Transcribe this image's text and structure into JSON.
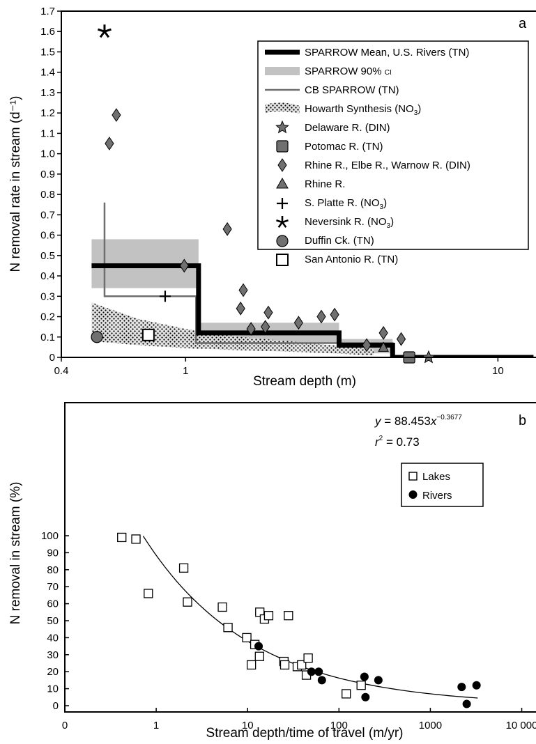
{
  "chart_data": [
    {
      "panel": "a",
      "type": "line",
      "xlabel": "Stream depth (m)",
      "ylabel": "N removal rate in stream (d⁻¹)",
      "xscale": "log",
      "xlim": [
        0.4,
        13
      ],
      "ylim": [
        0,
        1.7
      ],
      "x_ticks": [
        0.4,
        1,
        10
      ],
      "x_tick_labels": [
        "0.4",
        "1",
        "10"
      ],
      "y_ticks": [
        0,
        0.1,
        0.2,
        0.3,
        0.4,
        0.5,
        0.6,
        0.7,
        0.8,
        0.9,
        1.0,
        1.1,
        1.2,
        1.3,
        1.4,
        1.5,
        1.6,
        1.7
      ],
      "y_tick_labels": [
        "0",
        "0.1",
        "0.2",
        "0.3",
        "0.4",
        "0.5",
        "0.6",
        "0.7",
        "0.8",
        "0.9",
        "1.0",
        "1.1",
        "1.2",
        "1.3",
        "1.4",
        "1.5",
        "1.6",
        "1.7"
      ],
      "legend_position": "top-right",
      "legend": [
        {
          "label": "SPARROW Mean, U.S. Rivers (TN)",
          "symbol": "thick-line"
        },
        {
          "label": "SPARROW 90% CI",
          "symbol": "gray-band"
        },
        {
          "label": "CB SPARROW (TN)",
          "symbol": "gray-line"
        },
        {
          "label": "Howarth Synthesis (NO3)",
          "symbol": "dotted-band"
        },
        {
          "label": "Delaware R. (DIN)",
          "symbol": "star5"
        },
        {
          "label": "Potomac R. (TN)",
          "symbol": "square-filled"
        },
        {
          "label": "Rhine R., Elbe R., Warnow R. (DIN)",
          "symbol": "diamond"
        },
        {
          "label": "Rhine R.",
          "symbol": "triangle"
        },
        {
          "label": "S. Platte R. (NO3)",
          "symbol": "plus"
        },
        {
          "label": "Neversink R. (NO3)",
          "symbol": "asterisk"
        },
        {
          "label": "Duffin Ck. (TN)",
          "symbol": "circle"
        },
        {
          "label": "San Antonio R. (TN)",
          "symbol": "square-open"
        }
      ],
      "sparrow_mean_steps": [
        {
          "x0": 0.5,
          "x1": 1.1,
          "y": 0.45
        },
        {
          "x0": 1.1,
          "x1": 3.1,
          "y": 0.12
        },
        {
          "x0": 3.1,
          "x1": 4.6,
          "y": 0.06
        },
        {
          "x0": 4.6,
          "x1": 13,
          "y": 0.0
        }
      ],
      "sparrow_ci_steps": [
        {
          "x0": 0.5,
          "x1": 1.1,
          "lo": 0.34,
          "hi": 0.58
        },
        {
          "x0": 1.1,
          "x1": 3.1,
          "lo": 0.07,
          "hi": 0.17
        },
        {
          "x0": 3.1,
          "x1": 4.6,
          "lo": 0.02,
          "hi": 0.09
        }
      ],
      "cb_sparrow_points": [
        [
          0.55,
          0.76
        ],
        [
          0.55,
          0.3
        ],
        [
          1.08,
          0.3
        ],
        [
          1.08,
          0.07
        ],
        [
          4.6,
          0.07
        ],
        [
          4.6,
          0.0
        ],
        [
          13,
          0.0
        ]
      ],
      "howarth_upper": [
        [
          0.5,
          0.27
        ],
        [
          0.7,
          0.19
        ],
        [
          1.0,
          0.14
        ],
        [
          1.5,
          0.1
        ],
        [
          2.5,
          0.07
        ],
        [
          4.0,
          0.04
        ]
      ],
      "howarth_lower": [
        [
          0.5,
          0.08
        ],
        [
          0.7,
          0.06
        ],
        [
          1.0,
          0.045
        ],
        [
          1.5,
          0.035
        ],
        [
          2.5,
          0.025
        ],
        [
          4.0,
          0.01
        ]
      ],
      "points": {
        "delaware": [
          [
            6.0,
            0.0
          ]
        ],
        "potomac": [
          [
            5.2,
            0.0
          ]
        ],
        "rhine_elbe_warnow": [
          [
            0.57,
            1.05
          ],
          [
            0.6,
            1.19
          ],
          [
            0.99,
            0.45
          ],
          [
            1.36,
            0.63
          ],
          [
            1.5,
            0.24
          ],
          [
            1.53,
            0.33
          ],
          [
            1.62,
            0.14
          ],
          [
            1.8,
            0.15
          ],
          [
            1.84,
            0.22
          ],
          [
            2.3,
            0.17
          ],
          [
            2.72,
            0.2
          ],
          [
            3.0,
            0.21
          ],
          [
            3.8,
            0.06
          ],
          [
            4.3,
            0.12
          ],
          [
            4.9,
            0.09
          ]
        ],
        "rhine": [
          [
            4.3,
            0.05
          ]
        ],
        "s_platte": [
          [
            0.86,
            0.3
          ]
        ],
        "neversink": [
          [
            0.55,
            1.6
          ]
        ],
        "duffin": [
          [
            0.52,
            0.1
          ]
        ],
        "san_antonio": [
          [
            0.76,
            0.11
          ]
        ]
      }
    },
    {
      "panel": "b",
      "type": "scatter",
      "xlabel": "Stream depth/time of travel (m/yr)",
      "ylabel": "N removal in stream (%)",
      "xscale": "log",
      "xlim": [
        0.1,
        20000
      ],
      "ylim": [
        -3,
        112
      ],
      "x_ticks": [
        0.1,
        1,
        10,
        100,
        1000,
        10000
      ],
      "x_tick_labels": [
        "0",
        "1",
        "10",
        "100",
        "1000",
        "10 000"
      ],
      "y_ticks": [
        0,
        10,
        20,
        30,
        40,
        50,
        60,
        70,
        80,
        90,
        100
      ],
      "y_tick_labels": [
        "0",
        "10",
        "20",
        "30",
        "40",
        "50",
        "60",
        "70",
        "80",
        "90",
        "100"
      ],
      "equation": {
        "y": "y",
        "eq_text": " = 88.453",
        "x": "x",
        "exponent": "−0.3677"
      },
      "r2": {
        "r": "r",
        "sup": "2",
        "text": " = 0.73"
      },
      "fit": {
        "a": 88.453,
        "b": -0.3677,
        "x_range": [
          0.72,
          3300
        ]
      },
      "legend_position": "upper-right",
      "series": [
        {
          "name": "Lakes",
          "marker": "open-square",
          "points": [
            [
              0.42,
              99
            ],
            [
              0.6,
              98
            ],
            [
              0.82,
              66
            ],
            [
              2.0,
              81
            ],
            [
              2.2,
              61
            ],
            [
              5.3,
              58
            ],
            [
              6.1,
              46
            ],
            [
              9.8,
              40
            ],
            [
              11.0,
              24
            ],
            [
              12.0,
              36
            ],
            [
              13.5,
              29
            ],
            [
              13.6,
              55
            ],
            [
              15.3,
              51
            ],
            [
              17.0,
              53
            ],
            [
              25.0,
              26
            ],
            [
              25.5,
              24
            ],
            [
              28.0,
              53
            ],
            [
              35.0,
              23
            ],
            [
              39.0,
              24
            ],
            [
              44.0,
              18
            ],
            [
              46.0,
              28
            ],
            [
              120.0,
              7
            ],
            [
              175.0,
              12
            ]
          ]
        },
        {
          "name": "Rivers",
          "marker": "filled-circle",
          "points": [
            [
              13.2,
              35
            ],
            [
              50.0,
              20
            ],
            [
              60.0,
              20
            ],
            [
              65.0,
              15
            ],
            [
              190.0,
              17
            ],
            [
              195.0,
              5
            ],
            [
              270.0,
              15
            ],
            [
              2200.0,
              11
            ],
            [
              2500.0,
              1
            ],
            [
              3200.0,
              12
            ]
          ]
        }
      ]
    }
  ],
  "panels": {
    "a": {
      "letter": "a"
    },
    "b": {
      "letter": "b"
    }
  },
  "legend_a": {
    "sparrow_mean": "SPARROW Mean, U.S. Rivers (TN)",
    "sparrow_90_main": "SPARROW 90% ",
    "sparrow_90_ci": "CI",
    "cb_sparrow": "CB SPARROW (TN)",
    "howarth_main": "Howarth Synthesis (NO",
    "howarth_sub": "3",
    "howarth_end": ")",
    "delaware": "Delaware R. (DIN)",
    "potomac": "Potomac R. (TN)",
    "rhine_group": "Rhine R., Elbe R., Warnow R. (DIN)",
    "rhine": "Rhine R.",
    "splatte_main": "S. Platte R. (NO",
    "splatte_sub": "3",
    "splatte_end": ")",
    "neversink_main": "Neversink R. (NO",
    "neversink_sub": "3",
    "neversink_end": ")",
    "duffin": "Duffin Ck. (TN)",
    "san_antonio": "San Antonio R. (TN)"
  },
  "legend_b": {
    "lakes": "Lakes",
    "rivers": "Rivers"
  },
  "colors": {
    "sparrow_mean": "#000000",
    "ci_band": "#c2c2c2",
    "cb_sparrow": "#6e6e6e",
    "howarth_fill": "#e3e3e3",
    "marker_fill": "#707070",
    "rivers_fill": "#000000"
  }
}
